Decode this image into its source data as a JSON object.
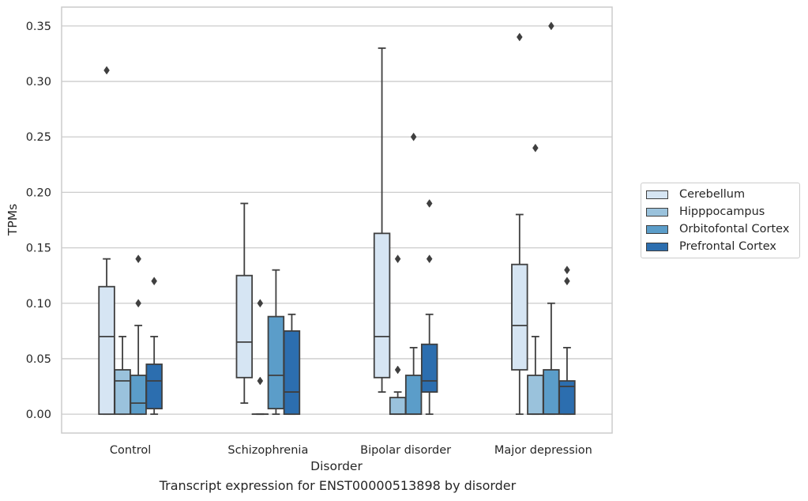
{
  "chart_data": {
    "type": "boxplot",
    "title": "Transcript expression for ENST00000513898 by disorder",
    "xlabel": "Disorder",
    "ylabel": "TPMs",
    "ylim": [
      -0.017,
      0.367
    ],
    "yticks": [
      "0.00",
      "0.05",
      "0.10",
      "0.15",
      "0.20",
      "0.25",
      "0.30",
      "0.35"
    ],
    "grid": "horizontal",
    "legend_position": "right",
    "categories": [
      "Control",
      "Schizophrenia",
      "Bipolar disorder",
      "Major depression"
    ],
    "series": [
      {
        "name": "Cerebellum",
        "color": "#d6e5f3",
        "boxes": [
          {
            "whislo": 0.0,
            "q1": 0.0,
            "median": 0.07,
            "q3": 0.115,
            "whishi": 0.14,
            "fliers": [
              0.31
            ]
          },
          {
            "whislo": 0.01,
            "q1": 0.033,
            "median": 0.065,
            "q3": 0.125,
            "whishi": 0.19,
            "fliers": []
          },
          {
            "whislo": 0.02,
            "q1": 0.033,
            "median": 0.07,
            "q3": 0.163,
            "whishi": 0.33,
            "fliers": []
          },
          {
            "whislo": 0.0,
            "q1": 0.04,
            "median": 0.08,
            "q3": 0.135,
            "whishi": 0.18,
            "fliers": [
              0.34
            ]
          }
        ]
      },
      {
        "name": "Hipppocampus",
        "color": "#9ac2dc",
        "boxes": [
          {
            "whislo": 0.0,
            "q1": 0.0,
            "median": 0.03,
            "q3": 0.04,
            "whishi": 0.07,
            "fliers": []
          },
          {
            "whislo": 0.0,
            "q1": 0.0,
            "median": 0.0,
            "q3": 0.0,
            "whishi": 0.0,
            "fliers": [
              0.03,
              0.1
            ]
          },
          {
            "whislo": 0.0,
            "q1": 0.0,
            "median": 0.0,
            "q3": 0.015,
            "whishi": 0.02,
            "fliers": [
              0.04,
              0.14
            ]
          },
          {
            "whislo": 0.0,
            "q1": 0.0,
            "median": 0.0,
            "q3": 0.035,
            "whishi": 0.07,
            "fliers": [
              0.24
            ]
          }
        ]
      },
      {
        "name": "Orbitofontal Cortex",
        "color": "#5b9dc9",
        "boxes": [
          {
            "whislo": 0.0,
            "q1": 0.0,
            "median": 0.01,
            "q3": 0.035,
            "whishi": 0.08,
            "fliers": [
              0.1,
              0.14
            ]
          },
          {
            "whislo": 0.0,
            "q1": 0.005,
            "median": 0.035,
            "q3": 0.088,
            "whishi": 0.13,
            "fliers": []
          },
          {
            "whislo": 0.0,
            "q1": 0.0,
            "median": 0.0,
            "q3": 0.035,
            "whishi": 0.06,
            "fliers": [
              0.25
            ]
          },
          {
            "whislo": 0.0,
            "q1": 0.0,
            "median": 0.0,
            "q3": 0.04,
            "whishi": 0.1,
            "fliers": [
              0.35
            ]
          }
        ]
      },
      {
        "name": "Prefrontal Cortex",
        "color": "#2c6eaf",
        "boxes": [
          {
            "whislo": 0.0,
            "q1": 0.005,
            "median": 0.03,
            "q3": 0.045,
            "whishi": 0.07,
            "fliers": [
              0.12
            ]
          },
          {
            "whislo": 0.0,
            "q1": 0.0,
            "median": 0.02,
            "q3": 0.075,
            "whishi": 0.09,
            "fliers": []
          },
          {
            "whislo": 0.0,
            "q1": 0.02,
            "median": 0.03,
            "q3": 0.063,
            "whishi": 0.09,
            "fliers": [
              0.14,
              0.19
            ]
          },
          {
            "whislo": 0.0,
            "q1": 0.0,
            "median": 0.025,
            "q3": 0.03,
            "whishi": 0.06,
            "fliers": [
              0.12,
              0.13
            ]
          }
        ]
      }
    ],
    "outline_color": "#3f3f3f",
    "grid_color": "#cccccc"
  }
}
